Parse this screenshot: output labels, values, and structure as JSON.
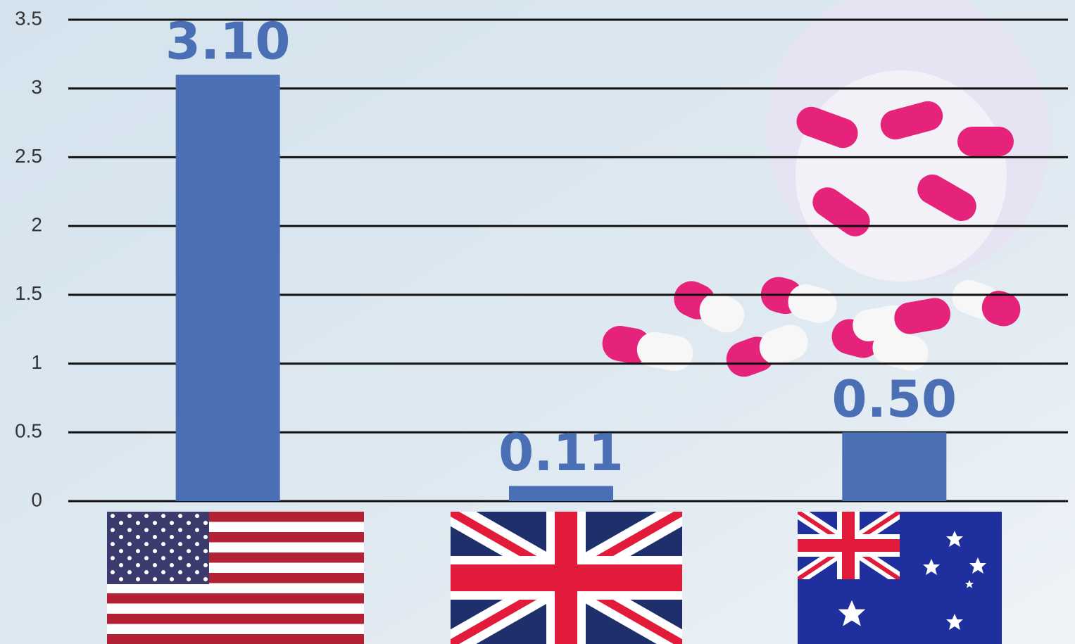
{
  "chart_data": {
    "type": "bar",
    "categories": [
      null,
      null,
      null
    ],
    "values": [
      3.1,
      0.11,
      0.5
    ],
    "value_labels": [
      "3.10",
      "0.11",
      "0.50"
    ],
    "color": "#4a6fb5",
    "ylim": [
      0,
      3.5
    ],
    "yticks": [
      0,
      0.5,
      1,
      1.5,
      2,
      2.5,
      3,
      3.5
    ],
    "grid": true
  }
}
